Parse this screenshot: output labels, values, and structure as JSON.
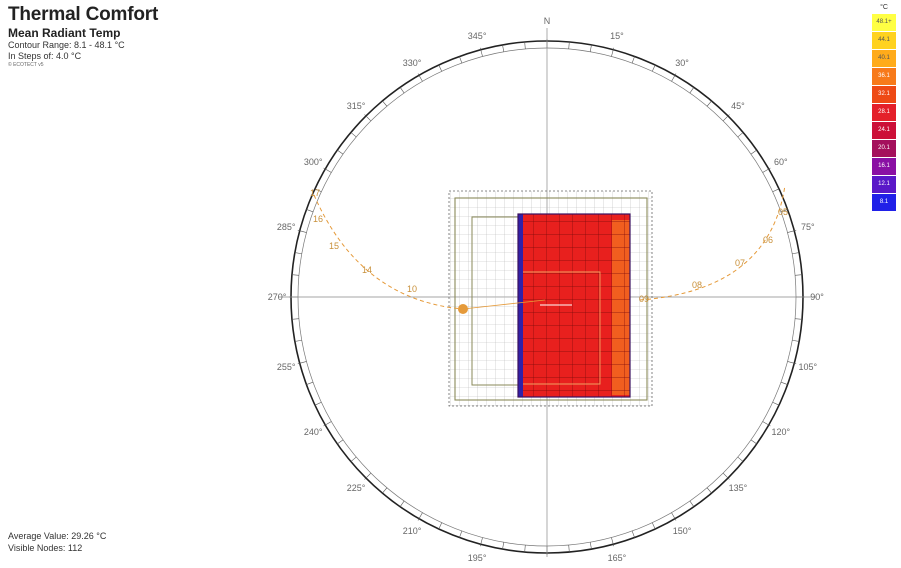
{
  "header": {
    "title": "Thermal Comfort",
    "subtitle": "Mean Radiant Temp",
    "contour_range": "Contour Range: 8.1 - 48.1 °C",
    "steps": "In Steps of: 4.0 °C",
    "credit": "© ECOTECT v5"
  },
  "footer": {
    "average": "Average Value: 29.26 °C",
    "visible_nodes": "Visible Nodes: 112"
  },
  "legend": {
    "unit": "°C",
    "items": [
      {
        "label": "48.1+",
        "color": "#ffff44",
        "text_color": "#555"
      },
      {
        "label": "44.1",
        "color": "#ffd21f",
        "text_color": "#555"
      },
      {
        "label": "40.1",
        "color": "#ffab1a",
        "text_color": "#555"
      },
      {
        "label": "36.1",
        "color": "#f77a1a",
        "text_color": "#ffffff"
      },
      {
        "label": "32.1",
        "color": "#ee4a15",
        "text_color": "#ffffff"
      },
      {
        "label": "28.1",
        "color": "#e4202a",
        "text_color": "#ffffff"
      },
      {
        "label": "24.1",
        "color": "#cc1038",
        "text_color": "#ffffff"
      },
      {
        "label": "20.1",
        "color": "#a4105c",
        "text_color": "#ffffff"
      },
      {
        "label": "16.1",
        "color": "#8a10a4",
        "text_color": "#ffffff"
      },
      {
        "label": "12.1",
        "color": "#5a18c8",
        "text_color": "#ffffff"
      },
      {
        "label": "8.1",
        "color": "#2020e8",
        "text_color": "#ffffff"
      }
    ]
  },
  "compass": {
    "north": "N",
    "labels": [
      {
        "angle": 15,
        "text": "15°"
      },
      {
        "angle": 30,
        "text": "30°"
      },
      {
        "angle": 45,
        "text": "45°"
      },
      {
        "angle": 60,
        "text": "60°"
      },
      {
        "angle": 75,
        "text": "75°"
      },
      {
        "angle": 90,
        "text": "90°"
      },
      {
        "angle": 105,
        "text": "105°"
      },
      {
        "angle": 120,
        "text": "120°"
      },
      {
        "angle": 135,
        "text": "135°"
      },
      {
        "angle": 150,
        "text": "150°"
      },
      {
        "angle": 165,
        "text": "165°"
      },
      {
        "angle": 195,
        "text": "195°"
      },
      {
        "angle": 210,
        "text": "210°"
      },
      {
        "angle": 225,
        "text": "225°"
      },
      {
        "angle": 240,
        "text": "240°"
      },
      {
        "angle": 255,
        "text": "255°"
      },
      {
        "angle": 270,
        "text": "270°"
      },
      {
        "angle": 285,
        "text": "285°"
      },
      {
        "angle": 300,
        "text": "300°"
      },
      {
        "angle": 315,
        "text": "315°"
      },
      {
        "angle": 330,
        "text": "330°"
      },
      {
        "angle": 345,
        "text": "345°"
      }
    ]
  },
  "sun_path": {
    "hours": [
      "17",
      "16",
      "15",
      "14",
      "10",
      "09",
      "08",
      "07",
      "06",
      "05"
    ],
    "marker_color": "#e59a3a"
  },
  "model": {
    "hot_color": "#e8201e",
    "warm_color": "#f26a20",
    "cool_edge_color": "#3020a8"
  }
}
